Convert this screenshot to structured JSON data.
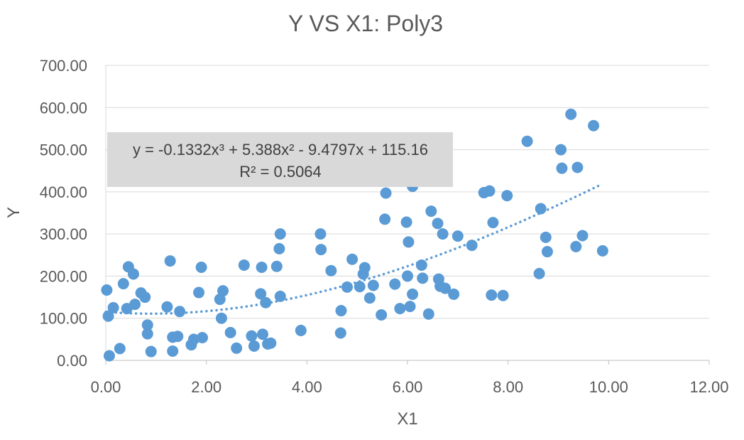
{
  "chart_data": {
    "type": "scatter",
    "title": "Y VS X1: Poly3",
    "xlabel": "X1",
    "ylabel": "Y",
    "xlim": [
      0,
      12
    ],
    "ylim": [
      0,
      700
    ],
    "x_ticks": [
      "0.00",
      "2.00",
      "4.00",
      "6.00",
      "8.00",
      "10.00",
      "12.00"
    ],
    "y_ticks": [
      "0.00",
      "100.00",
      "200.00",
      "300.00",
      "400.00",
      "500.00",
      "600.00",
      "700.00"
    ],
    "grid": "horizontal",
    "legend": "none",
    "point_color": "#5b9bd5",
    "trendline": {
      "kind": "polynomial-order-3",
      "style": "dotted",
      "coefficients": [
        -0.1332,
        5.388,
        -9.4797,
        115.16
      ],
      "x_range": [
        0.0,
        9.85
      ],
      "equation_label": "y = -0.1332x³ + 5.388x² - 9.4797x + 115.16",
      "r2_label": "R² = 0.5064",
      "label_background": "#d9d9d9"
    },
    "points": [
      [
        0.02,
        167
      ],
      [
        0.05,
        105
      ],
      [
        0.07,
        11
      ],
      [
        0.15,
        125
      ],
      [
        0.28,
        28
      ],
      [
        0.35,
        182
      ],
      [
        0.42,
        123
      ],
      [
        0.45,
        222
      ],
      [
        0.55,
        205
      ],
      [
        0.58,
        133
      ],
      [
        0.7,
        160
      ],
      [
        0.78,
        150
      ],
      [
        0.83,
        84
      ],
      [
        0.83,
        63
      ],
      [
        0.9,
        21
      ],
      [
        1.22,
        127
      ],
      [
        1.28,
        236
      ],
      [
        1.33,
        55
      ],
      [
        1.33,
        22
      ],
      [
        1.43,
        57
      ],
      [
        1.47,
        116
      ],
      [
        1.7,
        37
      ],
      [
        1.75,
        50
      ],
      [
        1.85,
        161
      ],
      [
        1.9,
        221
      ],
      [
        1.92,
        54
      ],
      [
        2.27,
        145
      ],
      [
        2.3,
        100
      ],
      [
        2.33,
        165
      ],
      [
        2.48,
        66
      ],
      [
        2.6,
        29
      ],
      [
        2.75,
        226
      ],
      [
        2.9,
        58
      ],
      [
        2.95,
        34
      ],
      [
        3.08,
        158
      ],
      [
        3.1,
        221
      ],
      [
        3.12,
        62
      ],
      [
        3.18,
        137
      ],
      [
        3.22,
        39
      ],
      [
        3.28,
        41
      ],
      [
        3.4,
        223
      ],
      [
        3.45,
        265
      ],
      [
        3.47,
        300
      ],
      [
        3.47,
        152
      ],
      [
        3.88,
        71
      ],
      [
        4.27,
        300
      ],
      [
        4.28,
        263
      ],
      [
        4.48,
        213
      ],
      [
        4.67,
        65
      ],
      [
        4.68,
        118
      ],
      [
        4.8,
        174
      ],
      [
        4.9,
        240
      ],
      [
        5.05,
        175
      ],
      [
        5.12,
        205
      ],
      [
        5.15,
        220
      ],
      [
        5.25,
        148
      ],
      [
        5.32,
        178
      ],
      [
        5.48,
        108
      ],
      [
        5.55,
        335
      ],
      [
        5.57,
        397
      ],
      [
        5.75,
        181
      ],
      [
        5.85,
        123
      ],
      [
        5.98,
        328
      ],
      [
        6.0,
        200
      ],
      [
        6.02,
        281
      ],
      [
        6.05,
        128
      ],
      [
        6.1,
        157
      ],
      [
        6.1,
        413
      ],
      [
        6.28,
        226
      ],
      [
        6.3,
        195
      ],
      [
        6.42,
        110
      ],
      [
        6.47,
        354
      ],
      [
        6.6,
        325
      ],
      [
        6.62,
        193
      ],
      [
        6.65,
        176
      ],
      [
        6.7,
        300
      ],
      [
        6.75,
        171
      ],
      [
        6.92,
        157
      ],
      [
        7.0,
        295
      ],
      [
        7.28,
        273
      ],
      [
        7.52,
        398
      ],
      [
        7.63,
        402
      ],
      [
        7.67,
        155
      ],
      [
        7.7,
        327
      ],
      [
        7.9,
        154
      ],
      [
        7.98,
        391
      ],
      [
        8.38,
        520
      ],
      [
        8.62,
        206
      ],
      [
        8.65,
        360
      ],
      [
        8.75,
        292
      ],
      [
        8.78,
        258
      ],
      [
        9.05,
        500
      ],
      [
        9.07,
        456
      ],
      [
        9.25,
        584
      ],
      [
        9.35,
        270
      ],
      [
        9.38,
        458
      ],
      [
        9.48,
        296
      ],
      [
        9.7,
        557
      ],
      [
        9.88,
        260
      ]
    ]
  }
}
